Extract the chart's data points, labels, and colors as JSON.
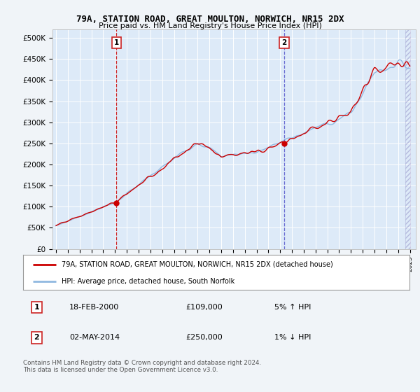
{
  "title1": "79A, STATION ROAD, GREAT MOULTON, NORWICH, NR15 2DX",
  "title2": "Price paid vs. HM Land Registry's House Price Index (HPI)",
  "ylabel_ticks": [
    "£0",
    "£50K",
    "£100K",
    "£150K",
    "£200K",
    "£250K",
    "£300K",
    "£350K",
    "£400K",
    "£450K",
    "£500K"
  ],
  "ytick_values": [
    0,
    50000,
    100000,
    150000,
    200000,
    250000,
    300000,
    350000,
    400000,
    450000,
    500000
  ],
  "ylim": [
    0,
    520000
  ],
  "xlim_start": 1994.7,
  "xlim_end": 2025.5,
  "bg_color": "#f0f4f8",
  "plot_bg": "#ddeaf8",
  "grid_color": "#ffffff",
  "hpi_color": "#90b8e0",
  "price_color": "#cc0000",
  "marker1_x": 2000.12,
  "marker1_y": 109000,
  "marker2_x": 2014.34,
  "marker2_y": 250000,
  "legend_line1": "79A, STATION ROAD, GREAT MOULTON, NORWICH, NR15 2DX (detached house)",
  "legend_line2": "HPI: Average price, detached house, South Norfolk",
  "ann1_date": "18-FEB-2000",
  "ann1_price": "£109,000",
  "ann1_hpi": "5% ↑ HPI",
  "ann2_date": "02-MAY-2014",
  "ann2_price": "£250,000",
  "ann2_hpi": "1% ↓ HPI",
  "footer": "Contains HM Land Registry data © Crown copyright and database right 2024.\nThis data is licensed under the Open Government Licence v3.0."
}
